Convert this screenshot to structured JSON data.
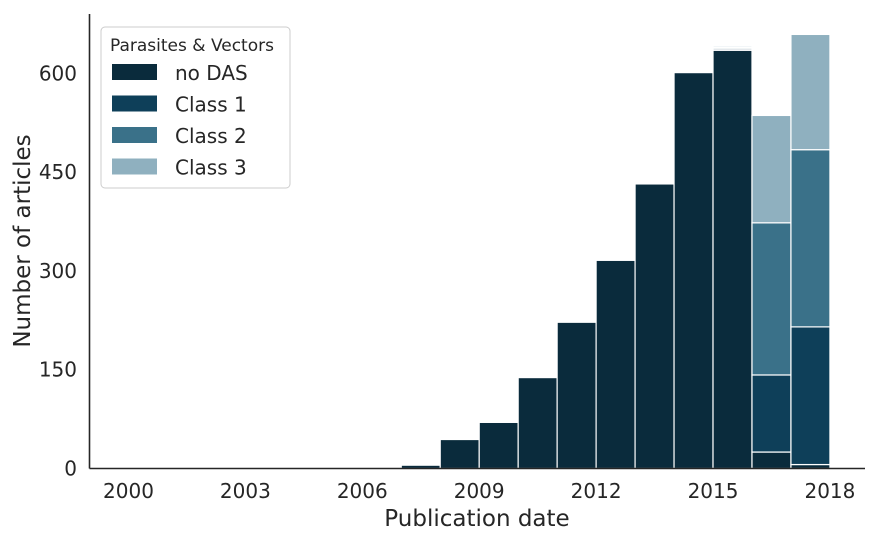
{
  "chart_data": {
    "type": "bar",
    "stacked": true,
    "xlabel": "Publication date",
    "ylabel": "Number of articles",
    "ylim": [
      0,
      690
    ],
    "xlim": [
      1999,
      2018.9
    ],
    "yticks": [
      0,
      150,
      300,
      450,
      600
    ],
    "xticks": [
      2000,
      2003,
      2006,
      2009,
      2012,
      2015,
      2018
    ],
    "grid": false,
    "legend": {
      "title": "Parasites & Vectors",
      "position": "top-left"
    },
    "bin_width": 1,
    "bins": [
      2007,
      2008,
      2009,
      2010,
      2011,
      2012,
      2013,
      2014,
      2015,
      2016,
      2017
    ],
    "series": [
      {
        "name": "no DAS",
        "color": "#0a2b3c",
        "values": [
          5,
          44,
          70,
          138,
          222,
          316,
          432,
          601,
          635,
          25,
          6
        ]
      },
      {
        "name": "Class 1",
        "color": "#0e3f59",
        "values": [
          0,
          0,
          0,
          0,
          0,
          0,
          0,
          0,
          2,
          117,
          209
        ]
      },
      {
        "name": "Class 2",
        "color": "#3a7189",
        "values": [
          0,
          0,
          0,
          0,
          0,
          0,
          0,
          0,
          2,
          231,
          269
        ]
      },
      {
        "name": "Class 3",
        "color": "#8fb0bf",
        "values": [
          0,
          0,
          0,
          0,
          0,
          0,
          0,
          0,
          2,
          163,
          175
        ]
      }
    ]
  }
}
